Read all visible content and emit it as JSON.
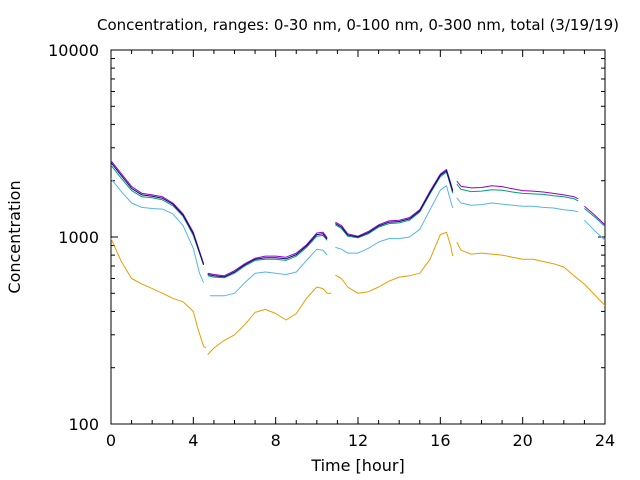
{
  "chart_data": {
    "type": "line",
    "title": "Concentration, ranges: 0-30 nm, 0-100 nm, 0-300 nm, total (3/19/19)",
    "xlabel": "Time [hour]",
    "ylabel": "Concentration",
    "xlim": [
      0,
      24
    ],
    "ylim": [
      100,
      10000
    ],
    "yscale": "log",
    "grid": false,
    "legend": "none",
    "x_ticks": [
      0,
      4,
      8,
      12,
      16,
      20,
      24
    ],
    "x_tick_labels": [
      "0",
      "4",
      "8",
      "12",
      "16",
      "20",
      "24"
    ],
    "y_ticks": [
      100,
      1000,
      10000
    ],
    "y_tick_labels": [
      "100",
      "1000",
      "10000"
    ],
    "series": [
      {
        "color": "#e69f00",
        "segments": [
          [
            [
              0,
              980
            ],
            [
              0.5,
              740
            ],
            [
              1,
              600
            ],
            [
              1.5,
              560
            ],
            [
              2,
              530
            ],
            [
              2.5,
              500
            ],
            [
              3,
              470
            ],
            [
              3.5,
              450
            ],
            [
              4,
              400
            ],
            [
              4.2,
              330
            ],
            [
              4.5,
              260
            ],
            [
              4.6,
              255
            ]
          ],
          [
            [
              4.7,
              235
            ],
            [
              5,
              255
            ],
            [
              5.5,
              280
            ],
            [
              6,
              300
            ],
            [
              6.5,
              340
            ],
            [
              7,
              395
            ],
            [
              7.5,
              410
            ],
            [
              8,
              390
            ],
            [
              8.5,
              360
            ],
            [
              9,
              390
            ],
            [
              9.5,
              470
            ],
            [
              10,
              540
            ],
            [
              10.3,
              530
            ],
            [
              10.5,
              500
            ],
            [
              10.7,
              500
            ]
          ],
          [
            [
              10.9,
              625
            ],
            [
              11.2,
              600
            ],
            [
              11.5,
              540
            ],
            [
              12,
              500
            ],
            [
              12.5,
              510
            ],
            [
              13,
              540
            ],
            [
              13.5,
              580
            ],
            [
              14,
              610
            ],
            [
              14.5,
              620
            ],
            [
              15,
              640
            ],
            [
              15.5,
              760
            ],
            [
              16,
              1030
            ],
            [
              16.3,
              1060
            ],
            [
              16.5,
              900
            ],
            [
              16.6,
              790
            ]
          ],
          [
            [
              16.8,
              940
            ],
            [
              17,
              850
            ],
            [
              17.5,
              810
            ],
            [
              18,
              820
            ],
            [
              18.5,
              810
            ],
            [
              19,
              800
            ],
            [
              19.5,
              780
            ],
            [
              20,
              760
            ],
            [
              20.5,
              760
            ],
            [
              21,
              740
            ],
            [
              21.5,
              720
            ],
            [
              22,
              690
            ],
            [
              22.5,
              620
            ],
            [
              23,
              560
            ],
            [
              23.5,
              490
            ],
            [
              24,
              430
            ]
          ]
        ]
      },
      {
        "color": "#56b4e9",
        "segments": [
          [
            [
              0,
              2050
            ],
            [
              0.5,
              1750
            ],
            [
              1,
              1520
            ],
            [
              1.5,
              1440
            ],
            [
              2,
              1420
            ],
            [
              2.5,
              1410
            ],
            [
              3,
              1330
            ],
            [
              3.5,
              1150
            ],
            [
              4,
              870
            ],
            [
              4.3,
              640
            ],
            [
              4.5,
              570
            ]
          ],
          [
            [
              4.8,
              485
            ],
            [
              5,
              485
            ],
            [
              5.5,
              485
            ],
            [
              6,
              500
            ],
            [
              6.5,
              570
            ],
            [
              7,
              640
            ],
            [
              7.5,
              650
            ],
            [
              8,
              640
            ],
            [
              8.5,
              630
            ],
            [
              9,
              650
            ],
            [
              9.5,
              750
            ],
            [
              10,
              860
            ],
            [
              10.3,
              850
            ],
            [
              10.5,
              800
            ]
          ],
          [
            [
              10.9,
              880
            ],
            [
              11.2,
              860
            ],
            [
              11.5,
              820
            ],
            [
              12,
              820
            ],
            [
              12.5,
              870
            ],
            [
              13,
              940
            ],
            [
              13.5,
              980
            ],
            [
              14,
              980
            ],
            [
              14.5,
              1000
            ],
            [
              15,
              1100
            ],
            [
              15.5,
              1400
            ],
            [
              16,
              1780
            ],
            [
              16.3,
              1880
            ],
            [
              16.5,
              1560
            ],
            [
              16.6,
              1430
            ]
          ],
          [
            [
              16.8,
              1620
            ],
            [
              17,
              1520
            ],
            [
              17.5,
              1480
            ],
            [
              18,
              1490
            ],
            [
              18.5,
              1520
            ],
            [
              19,
              1500
            ],
            [
              19.5,
              1480
            ],
            [
              20,
              1460
            ],
            [
              20.5,
              1460
            ],
            [
              21,
              1440
            ],
            [
              21.5,
              1430
            ],
            [
              22,
              1400
            ],
            [
              22.5,
              1380
            ],
            [
              22.7,
              1360
            ]
          ],
          [
            [
              23,
              1230
            ],
            [
              23.5,
              1080
            ],
            [
              24,
              960
            ]
          ]
        ]
      },
      {
        "color": "#009e73",
        "segments": [
          [
            [
              0,
              2420
            ],
            [
              0.5,
              2060
            ],
            [
              1,
              1770
            ],
            [
              1.5,
              1640
            ],
            [
              2,
              1620
            ],
            [
              2.5,
              1580
            ],
            [
              3,
              1470
            ],
            [
              3.5,
              1290
            ],
            [
              4,
              1020
            ],
            [
              4.5,
              710
            ]
          ],
          [
            [
              4.7,
              620
            ],
            [
              5,
              610
            ],
            [
              5.5,
              605
            ],
            [
              6,
              640
            ],
            [
              6.5,
              700
            ],
            [
              7,
              750
            ],
            [
              7.5,
              760
            ],
            [
              8,
              760
            ],
            [
              8.5,
              750
            ],
            [
              9,
              790
            ],
            [
              9.5,
              880
            ],
            [
              10,
              1010
            ],
            [
              10.3,
              1020
            ],
            [
              10.5,
              960
            ]
          ],
          [
            [
              10.9,
              1160
            ],
            [
              11.2,
              1110
            ],
            [
              11.5,
              1010
            ],
            [
              12,
              990
            ],
            [
              12.5,
              1040
            ],
            [
              13,
              1130
            ],
            [
              13.5,
              1180
            ],
            [
              14,
              1190
            ],
            [
              14.5,
              1230
            ],
            [
              15,
              1360
            ],
            [
              15.5,
              1700
            ],
            [
              16,
              2100
            ],
            [
              16.3,
              2220
            ],
            [
              16.5,
              1880
            ],
            [
              16.6,
              1720
            ]
          ],
          [
            [
              16.8,
              1920
            ],
            [
              17,
              1800
            ],
            [
              17.5,
              1750
            ],
            [
              18,
              1760
            ],
            [
              18.5,
              1790
            ],
            [
              19,
              1780
            ],
            [
              19.5,
              1740
            ],
            [
              20,
              1710
            ],
            [
              20.5,
              1700
            ],
            [
              21,
              1690
            ],
            [
              21.5,
              1660
            ],
            [
              22,
              1640
            ],
            [
              22.5,
              1600
            ],
            [
              22.7,
              1560
            ]
          ],
          [
            [
              23,
              1420
            ],
            [
              23.5,
              1280
            ],
            [
              24,
              1140
            ]
          ]
        ]
      },
      {
        "color": "#9400d3",
        "segments": [
          [
            [
              0,
              2560
            ],
            [
              0.5,
              2180
            ],
            [
              1,
              1860
            ],
            [
              1.5,
              1710
            ],
            [
              2,
              1680
            ],
            [
              2.5,
              1640
            ],
            [
              3,
              1520
            ],
            [
              3.5,
              1330
            ],
            [
              4,
              1060
            ],
            [
              4.5,
              720
            ]
          ],
          [
            [
              4.7,
              640
            ],
            [
              5,
              630
            ],
            [
              5.5,
              620
            ],
            [
              6,
              660
            ],
            [
              6.5,
              720
            ],
            [
              7,
              770
            ],
            [
              7.5,
              790
            ],
            [
              8,
              790
            ],
            [
              8.5,
              780
            ],
            [
              9,
              820
            ],
            [
              9.5,
              910
            ],
            [
              10,
              1050
            ],
            [
              10.3,
              1060
            ],
            [
              10.5,
              990
            ]
          ],
          [
            [
              10.9,
              1200
            ],
            [
              11.2,
              1150
            ],
            [
              11.5,
              1040
            ],
            [
              12,
              1010
            ],
            [
              12.5,
              1070
            ],
            [
              13,
              1160
            ],
            [
              13.5,
              1220
            ],
            [
              14,
              1230
            ],
            [
              14.5,
              1270
            ],
            [
              15,
              1400
            ],
            [
              15.5,
              1760
            ],
            [
              16,
              2170
            ],
            [
              16.3,
              2300
            ],
            [
              16.5,
              1950
            ],
            [
              16.6,
              1780
            ]
          ],
          [
            [
              16.8,
              1990
            ],
            [
              17,
              1870
            ],
            [
              17.5,
              1830
            ],
            [
              18,
              1840
            ],
            [
              18.5,
              1880
            ],
            [
              19,
              1860
            ],
            [
              19.5,
              1810
            ],
            [
              20,
              1770
            ],
            [
              20.5,
              1760
            ],
            [
              21,
              1740
            ],
            [
              21.5,
              1710
            ],
            [
              22,
              1680
            ],
            [
              22.5,
              1640
            ],
            [
              22.7,
              1600
            ]
          ],
          [
            [
              23,
              1460
            ],
            [
              23.5,
              1310
            ],
            [
              24,
              1160
            ]
          ]
        ]
      },
      {
        "color": "#0b0b6b",
        "segments": [
          [
            [
              0,
              2500
            ],
            [
              0.5,
              2130
            ],
            [
              1,
              1820
            ],
            [
              1.5,
              1680
            ],
            [
              2,
              1650
            ],
            [
              2.5,
              1610
            ],
            [
              3,
              1500
            ],
            [
              3.5,
              1310
            ],
            [
              4,
              1040
            ],
            [
              4.5,
              710
            ]
          ],
          [
            [
              4.7,
              630
            ],
            [
              5,
              620
            ],
            [
              5.5,
              612
            ],
            [
              6,
              650
            ],
            [
              6.5,
              710
            ],
            [
              7,
              760
            ],
            [
              7.5,
              775
            ],
            [
              8,
              775
            ],
            [
              8.5,
              765
            ],
            [
              9,
              805
            ],
            [
              9.5,
              895
            ],
            [
              10,
              1030
            ],
            [
              10.3,
              1040
            ],
            [
              10.5,
              975
            ]
          ],
          [
            [
              10.9,
              1180
            ],
            [
              11.2,
              1130
            ],
            [
              11.5,
              1025
            ],
            [
              12,
              1000
            ],
            [
              12.5,
              1055
            ],
            [
              13,
              1145
            ],
            [
              13.5,
              1200
            ],
            [
              14,
              1210
            ],
            [
              14.5,
              1250
            ],
            [
              15,
              1380
            ],
            [
              15.5,
              1730
            ],
            [
              16,
              2140
            ],
            [
              16.3,
              2260
            ],
            [
              16.5,
              1915
            ],
            [
              16.6,
              1750
            ]
          ]
        ]
      }
    ]
  }
}
